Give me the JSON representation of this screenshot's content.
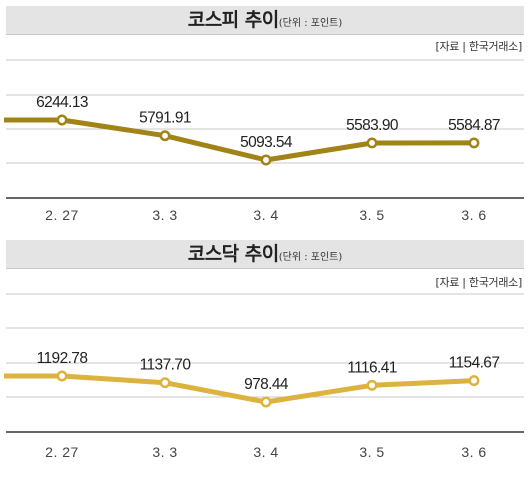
{
  "chart_data": [
    {
      "type": "line",
      "title": "코스피 추이",
      "unit_note": "(단위 : 포인트)",
      "source": "[자료 | 한국거래소]",
      "categories": [
        "2. 27",
        "3. 3",
        "3. 4",
        "3. 5",
        "3. 6"
      ],
      "values": [
        6244.13,
        5791.91,
        5093.54,
        5583.9,
        5584.87
      ],
      "value_labels": [
        "6244.13",
        "5791.91",
        "5093.54",
        "5583.90",
        "5584.87"
      ],
      "grid": true,
      "color": "#a08418"
    },
    {
      "type": "line",
      "title": "코스닥 추이",
      "unit_note": "(단위 : 포인트)",
      "source": "[자료 | 한국거래소]",
      "categories": [
        "2. 27",
        "3. 3",
        "3. 4",
        "3. 5",
        "3. 6"
      ],
      "values": [
        1192.78,
        1137.7,
        978.44,
        1116.41,
        1154.67
      ],
      "value_labels": [
        "1192.78",
        "1137.70",
        "978.44",
        "1116.41",
        "1154.67"
      ],
      "grid": true,
      "color": "#dcb33e"
    }
  ]
}
